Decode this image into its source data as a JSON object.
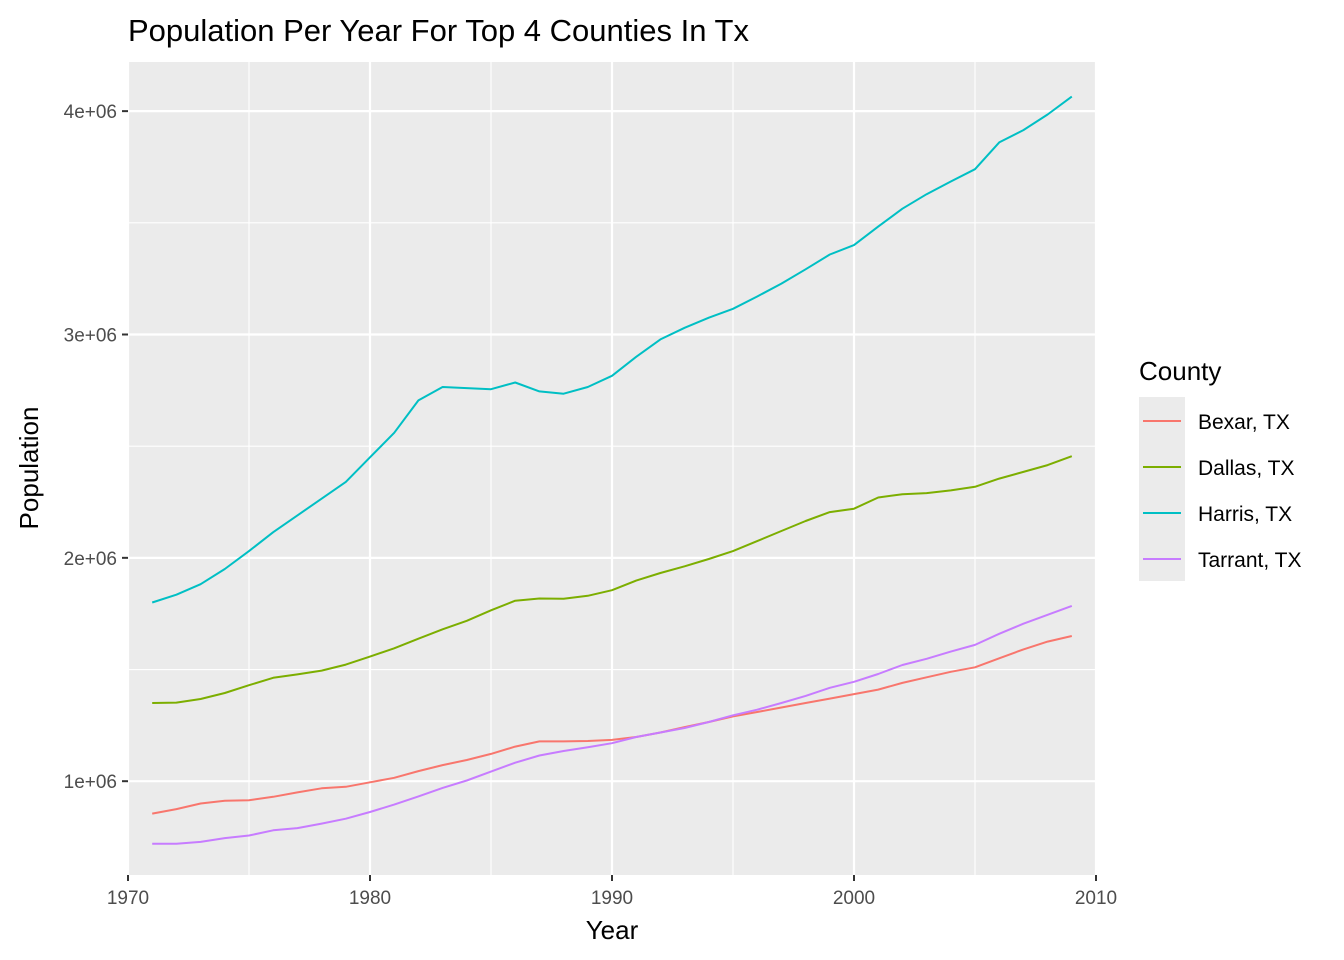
{
  "chart_data": {
    "type": "line",
    "title": "Population Per Year For Top 4 Counties In Tx",
    "xlabel": "Year",
    "ylabel": "Population",
    "xlim": [
      1970,
      2010
    ],
    "ylim": [
      580000,
      4220000
    ],
    "x_ticks": [
      1970,
      1980,
      1990,
      2000,
      2010
    ],
    "x_tick_labels": [
      "1970",
      "1980",
      "1990",
      "2000",
      "2010"
    ],
    "y_ticks": [
      1000000,
      2000000,
      3000000,
      4000000
    ],
    "y_tick_labels": [
      "1e+06",
      "2e+06",
      "3e+06",
      "4e+06"
    ],
    "grid": true,
    "legend_position": "right",
    "legend_title": "County",
    "x": [
      1971,
      1972,
      1973,
      1974,
      1975,
      1976,
      1977,
      1978,
      1979,
      1980,
      1981,
      1982,
      1983,
      1984,
      1985,
      1986,
      1987,
      1988,
      1989,
      1990,
      1991,
      1992,
      1993,
      1994,
      1995,
      1996,
      1997,
      1998,
      1999,
      2000,
      2001,
      2002,
      2003,
      2004,
      2005,
      2006,
      2007,
      2008,
      2009
    ],
    "series": [
      {
        "name": "Bexar, TX",
        "color": "#F8766D",
        "values": [
          855000,
          875000,
          900000,
          912000,
          915000,
          930000,
          950000,
          968000,
          975000,
          995000,
          1015000,
          1045000,
          1072000,
          1095000,
          1122000,
          1155000,
          1178000,
          1178000,
          1180000,
          1185000,
          1198000,
          1218000,
          1242000,
          1265000,
          1290000,
          1310000,
          1330000,
          1350000,
          1370000,
          1390000,
          1410000,
          1440000,
          1465000,
          1490000,
          1510000,
          1550000,
          1590000,
          1625000,
          1650000
        ]
      },
      {
        "name": "Dallas, TX",
        "color": "#7CAE00",
        "values": [
          1350000,
          1352000,
          1368000,
          1395000,
          1430000,
          1463000,
          1478000,
          1495000,
          1522000,
          1558000,
          1595000,
          1638000,
          1680000,
          1718000,
          1765000,
          1808000,
          1818000,
          1817000,
          1830000,
          1855000,
          1898000,
          1932000,
          1962000,
          1995000,
          2030000,
          2075000,
          2120000,
          2165000,
          2205000,
          2220000,
          2270000,
          2285000,
          2290000,
          2302000,
          2318000,
          2355000,
          2385000,
          2415000,
          2455000
        ]
      },
      {
        "name": "Harris, TX",
        "color": "#00BFC4",
        "values": [
          1800000,
          1835000,
          1882000,
          1950000,
          2030000,
          2115000,
          2190000,
          2265000,
          2340000,
          2450000,
          2560000,
          2705000,
          2765000,
          2760000,
          2755000,
          2785000,
          2745000,
          2735000,
          2765000,
          2815000,
          2900000,
          2978000,
          3030000,
          3075000,
          3115000,
          3170000,
          3228000,
          3292000,
          3358000,
          3400000,
          3483000,
          3563000,
          3628000,
          3685000,
          3740000,
          3860000,
          3915000,
          3985000,
          4065000
        ]
      },
      {
        "name": "Tarrant, TX",
        "color": "#C77CFF",
        "values": [
          720000,
          720000,
          728000,
          745000,
          757000,
          780000,
          790000,
          810000,
          832000,
          862000,
          895000,
          932000,
          970000,
          1003000,
          1043000,
          1083000,
          1115000,
          1135000,
          1152000,
          1170000,
          1198000,
          1218000,
          1238000,
          1265000,
          1295000,
          1320000,
          1350000,
          1382000,
          1418000,
          1445000,
          1480000,
          1520000,
          1548000,
          1580000,
          1610000,
          1660000,
          1705000,
          1745000,
          1785000
        ]
      }
    ]
  }
}
